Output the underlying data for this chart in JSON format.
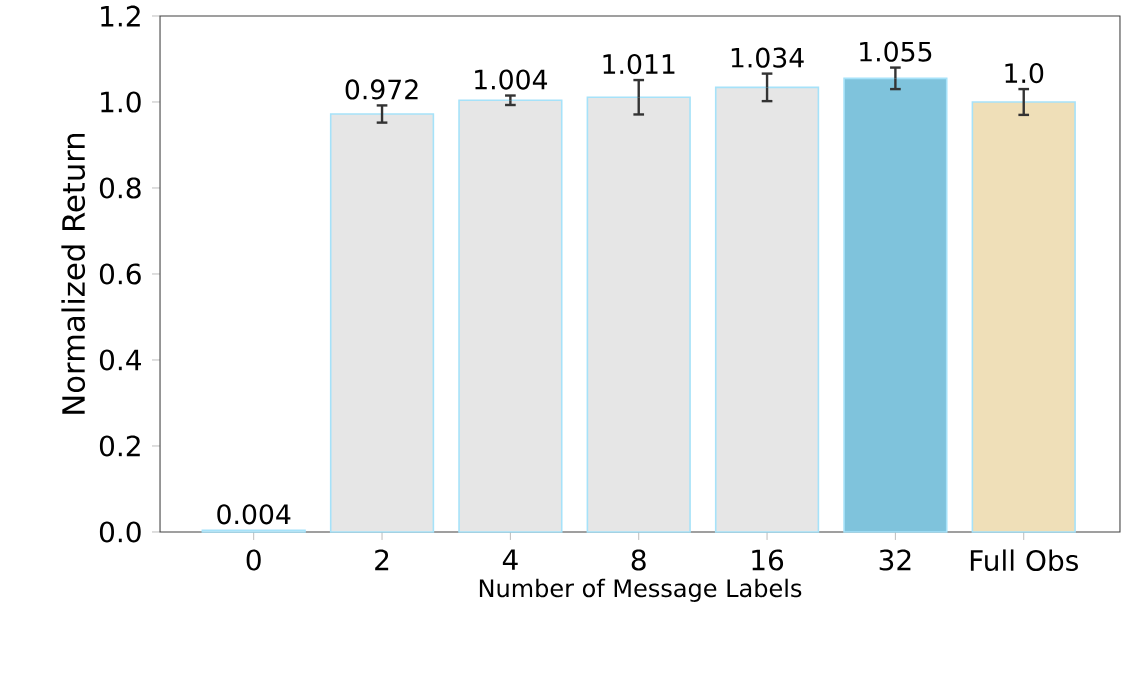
{
  "chart_data": {
    "type": "bar",
    "xlabel": "Number of Message Labels",
    "ylabel": "Normalized Return",
    "categories": [
      "0",
      "2",
      "4",
      "8",
      "16",
      "32",
      "Full Obs"
    ],
    "values": [
      0.004,
      0.972,
      1.004,
      1.011,
      1.034,
      1.055,
      1.0
    ],
    "value_labels": [
      "0.004",
      "0.972",
      "1.004",
      "1.011",
      "1.034",
      "1.055",
      "1.0"
    ],
    "errors": [
      null,
      0.02,
      0.011,
      0.04,
      0.032,
      0.025,
      0.03
    ],
    "colors": [
      "#e6e6e6",
      "#e6e6e6",
      "#e6e6e6",
      "#e6e6e6",
      "#e6e6e6",
      "#7fc3dc",
      "#efdfb8"
    ],
    "ylim": [
      0,
      1.2
    ],
    "yticks": [
      {
        "value": 0,
        "label": "0.0"
      },
      0.2,
      0.4,
      0.6,
      0.8,
      {
        "value": 1,
        "label": "1.0"
      },
      1.2
    ],
    "grid": false
  }
}
